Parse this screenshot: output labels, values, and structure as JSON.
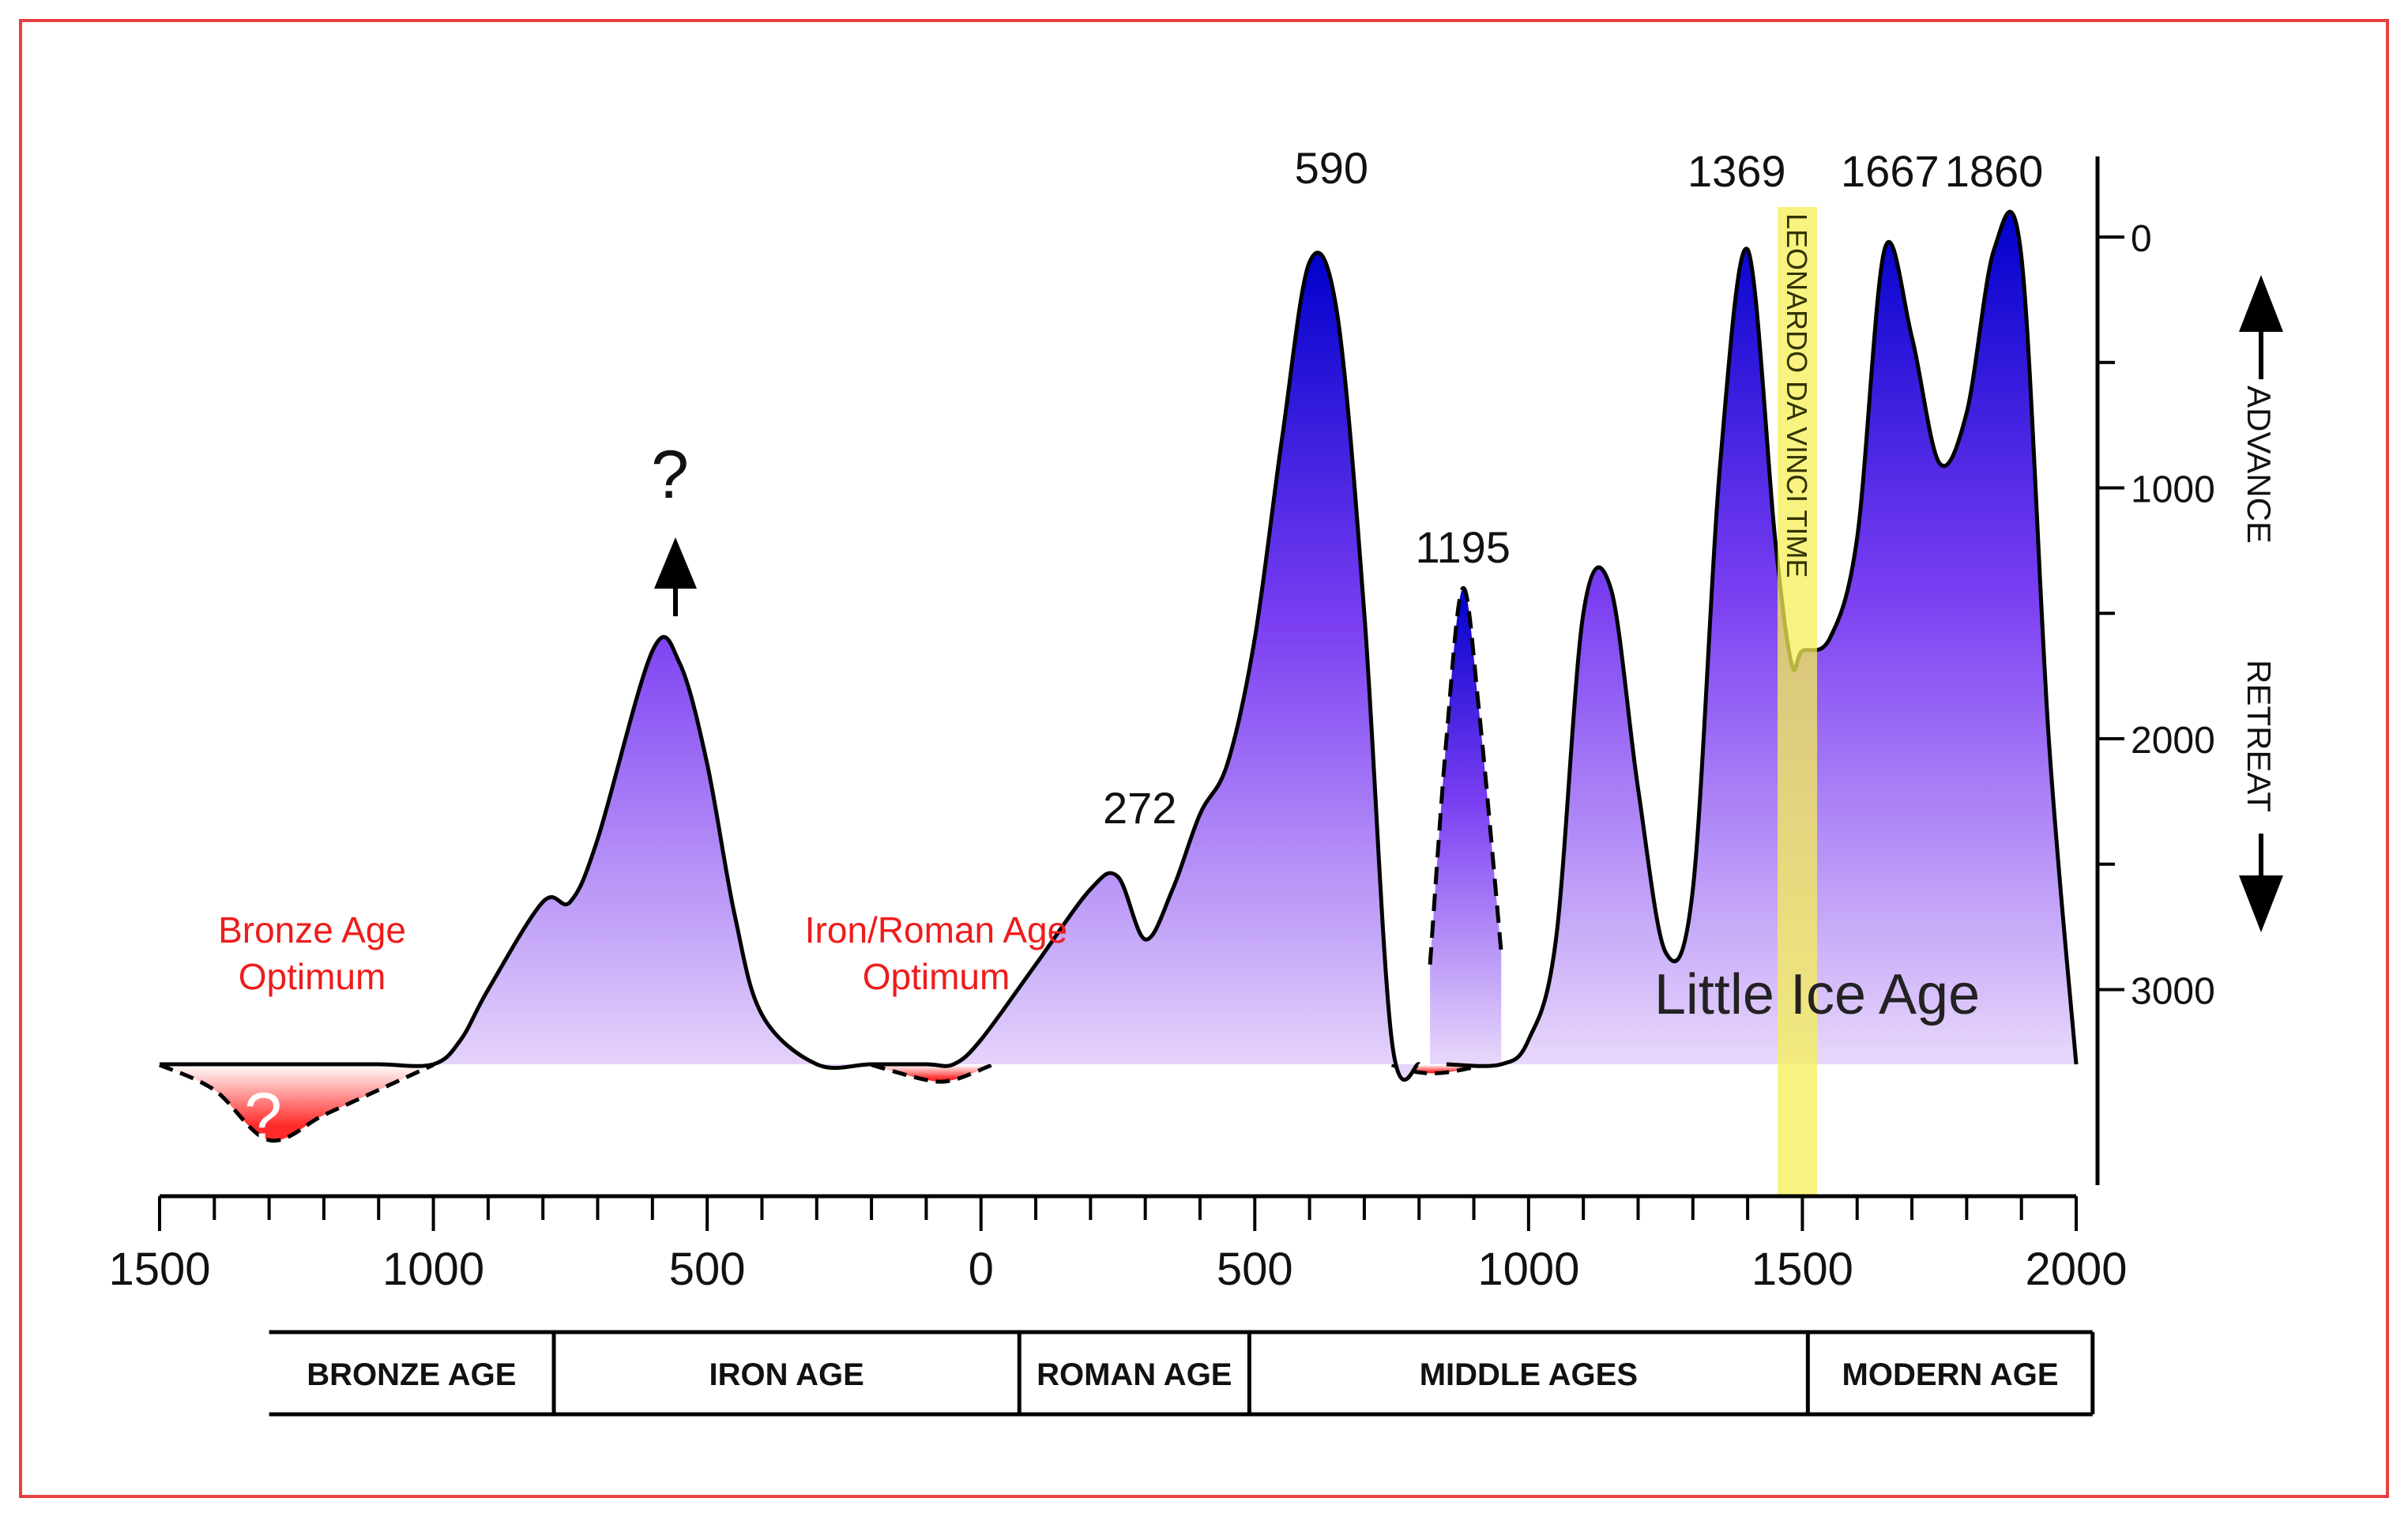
{
  "chart_data": {
    "type": "area",
    "title": "",
    "xlabel": "",
    "ylabel": "",
    "x_ticks": [
      "1500",
      "1000",
      "500",
      "0",
      "500",
      "1000",
      "1500",
      "2000"
    ],
    "x_range": [
      -1500,
      2000
    ],
    "y_ticks": [
      "0",
      "1000",
      "2000",
      "3000"
    ],
    "y_range": [
      3300,
      0
    ],
    "y_inverted": true,
    "series": [
      {
        "x": [
          -1500,
          -1400,
          -1300,
          -1200,
          -1100,
          -1000,
          -950,
          -900,
          -800,
          -750,
          -700,
          -600,
          -550,
          -500,
          -450,
          -400,
          -300,
          -200,
          -100,
          -50,
          0,
          100,
          200,
          250,
          300,
          350,
          400,
          450,
          500,
          550,
          600,
          650,
          700,
          750,
          800
        ],
        "y": [
          3300,
          3400,
          3600,
          3500,
          3400,
          3300,
          3200,
          3000,
          2650,
          2650,
          2400,
          1650,
          1700,
          2100,
          2700,
          3100,
          3300,
          3400,
          3350,
          3300,
          3200,
          2900,
          2600,
          2550,
          2800,
          2600,
          2300,
          2100,
          1600,
          800,
          100,
          300,
          1500,
          3200,
          3300
        ]
      },
      {
        "x": [
          820,
          850,
          880,
          910,
          950
        ],
        "y": [
          2900,
          2000,
          1400,
          1900,
          2850
        ]
      },
      {
        "x": [
          850,
          950,
          1000,
          1050,
          1100,
          1150,
          1200,
          1250,
          1300,
          1350,
          1400,
          1450,
          1480,
          1500,
          1550,
          1600,
          1650,
          1700,
          1750,
          1800,
          1850,
          1900,
          1950,
          2000
        ],
        "y": [
          3300,
          3300,
          3200,
          2800,
          1500,
          1400,
          2200,
          2850,
          2600,
          900,
          50,
          1200,
          1700,
          1650,
          1600,
          1200,
          50,
          400,
          900,
          700,
          50,
          80,
          2000,
          3300
        ]
      }
    ],
    "peak_labels": [
      {
        "text": "590",
        "x": 640
      },
      {
        "text": "272",
        "x": 290
      },
      {
        "text": "1195",
        "x": 880
      },
      {
        "text": "1369",
        "x": 1380
      },
      {
        "text": "1667",
        "x": 1660
      },
      {
        "text": "1860",
        "x": 1850
      }
    ],
    "unknown_marks": [
      "?",
      "?"
    ],
    "annotations": {
      "bronze_optimum_line1": "Bronze Age",
      "bronze_optimum_line2": "Optimum",
      "iron_optimum_line1": "Iron/Roman Age",
      "iron_optimum_line2": "Optimum",
      "little_ice_age": "Little Ice Age",
      "leonardo": "LEONARDO DA VINCI TIME",
      "advance": "ADVANCE",
      "retreat": "RETREAT"
    },
    "periods": [
      {
        "label": "BRONZE AGE",
        "from": -1300,
        "to": -780
      },
      {
        "label": "IRON AGE",
        "from": -780,
        "to": 70
      },
      {
        "label": "ROMAN AGE",
        "from": 70,
        "to": 490
      },
      {
        "label": "MIDDLE AGES",
        "from": 490,
        "to": 1510
      },
      {
        "label": "MODERN AGE",
        "from": 1510,
        "to": 2030
      }
    ],
    "colors": {
      "peak_fill": "#0000cc",
      "mid_fill": "#7b3ff2",
      "base_fill": "#e8d8fb",
      "optimum_fill": "#ff2b2b",
      "optimum_text": "#ee1c1c",
      "leonardo_band": "#f5ef55",
      "frame": "#e64040"
    }
  }
}
